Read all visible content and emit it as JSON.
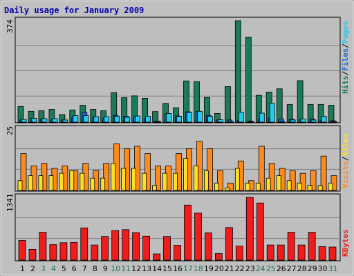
{
  "window": {
    "title": "Daily usage for January 2009"
  },
  "colors": {
    "panel_bg": "#c0c0c0",
    "plot_bg": "#bebebe",
    "grid": "#808080",
    "title": "#0000aa",
    "hits": "#1a7a5a",
    "files": "#1a6ad8",
    "pages": "#22ccee",
    "visits": "#ff8a1a",
    "sites": "#ffe020",
    "kbytes": "#ee1c1c",
    "weekend_label": "#1a7a5a",
    "weekday_label": "#000000"
  },
  "chart_data": [
    {
      "type": "bar",
      "title": "Daily usage for January 2009",
      "ymax_label": "374",
      "ylim": [
        0,
        374
      ],
      "legend_right": [
        {
          "text": "Hits",
          "color": "#1a7a5a"
        },
        {
          "text": "/",
          "color": "#000000"
        },
        {
          "text": "Files",
          "color": "#1a6ad8"
        },
        {
          "text": "/",
          "color": "#000000"
        },
        {
          "text": "Pages",
          "color": "#22ccee"
        }
      ],
      "categories": [
        "1",
        "2",
        "3",
        "4",
        "5",
        "6",
        "7",
        "8",
        "9",
        "10",
        "11",
        "12",
        "13",
        "14",
        "15",
        "16",
        "17",
        "18",
        "19",
        "20",
        "21",
        "22",
        "23",
        "24",
        "25",
        "26",
        "27",
        "28",
        "29",
        "30",
        "31"
      ],
      "series": [
        {
          "name": "Hits",
          "values": [
            58,
            40,
            42,
            47,
            28,
            45,
            62,
            47,
            42,
            109,
            90,
            97,
            88,
            39,
            69,
            53,
            152,
            149,
            91,
            32,
            131,
            374,
            313,
            99,
            111,
            123,
            65,
            153,
            65,
            65,
            62
          ]
        },
        {
          "name": "Files",
          "values": [
            8,
            13,
            11,
            10,
            8,
            16,
            36,
            18,
            14,
            25,
            22,
            21,
            14,
            4,
            30,
            23,
            38,
            40,
            25,
            8,
            8,
            6,
            4,
            11,
            15,
            12,
            11,
            10,
            12,
            7,
            5
          ]
        },
        {
          "name": "Pages",
          "values": [
            10,
            14,
            13,
            13,
            8,
            24,
            24,
            20,
            20,
            22,
            18,
            23,
            22,
            3,
            32,
            21,
            36,
            40,
            21,
            9,
            3,
            37,
            2,
            33,
            70,
            3,
            8,
            12,
            8,
            21,
            2
          ]
        }
      ]
    },
    {
      "type": "bar",
      "ymax_label": "25",
      "ylim": [
        0,
        25
      ],
      "legend_right": [
        {
          "text": "Visits",
          "color": "#ff8a1a"
        },
        {
          "text": "/",
          "color": "#000000"
        },
        {
          "text": "Sites",
          "color": "#ffe020"
        }
      ],
      "categories": [
        "1",
        "2",
        "3",
        "4",
        "5",
        "6",
        "7",
        "8",
        "9",
        "10",
        "11",
        "12",
        "13",
        "14",
        "15",
        "16",
        "17",
        "18",
        "19",
        "20",
        "21",
        "22",
        "23",
        "24",
        "25",
        "26",
        "27",
        "28",
        "29",
        "30",
        "31"
      ],
      "series": [
        {
          "name": "Visits",
          "values": [
            15,
            10,
            11,
            9,
            10,
            8,
            11,
            8,
            11,
            19,
            17,
            18,
            15,
            10,
            10,
            15,
            17,
            20,
            17,
            8,
            3,
            12,
            4,
            18,
            11,
            9,
            8,
            7,
            8,
            14,
            6
          ]
        },
        {
          "name": "Sites",
          "values": [
            4,
            6,
            6,
            6,
            7,
            8,
            7,
            5,
            5,
            11,
            9,
            9,
            7,
            2,
            7,
            7,
            13,
            10,
            8,
            3,
            1,
            9,
            3,
            3,
            5,
            6,
            4,
            3,
            2,
            2,
            3
          ]
        }
      ]
    },
    {
      "type": "bar",
      "ymax_label": "1341",
      "ylim": [
        0,
        1341
      ],
      "legend_right": [
        {
          "text": "KBytes",
          "color": "#ee1c1c"
        }
      ],
      "categories": [
        "1",
        "2",
        "3",
        "4",
        "5",
        "6",
        "7",
        "8",
        "9",
        "10",
        "11",
        "12",
        "13",
        "14",
        "15",
        "16",
        "17",
        "18",
        "19",
        "20",
        "21",
        "22",
        "23",
        "24",
        "25",
        "26",
        "27",
        "28",
        "29",
        "30",
        "31"
      ],
      "series": [
        {
          "name": "KBytes",
          "values": [
            420,
            230,
            596,
            332,
            372,
            378,
            688,
            322,
            506,
            632,
            652,
            588,
            512,
            132,
            506,
            316,
            1174,
            1003,
            584,
            140,
            696,
            300,
            1341,
            1220,
            322,
            322,
            596,
            322,
            596,
            289,
            280
          ]
        }
      ]
    }
  ],
  "x_axis": {
    "labels": [
      "1",
      "2",
      "3",
      "4",
      "5",
      "6",
      "7",
      "8",
      "9",
      "10",
      "11",
      "12",
      "13",
      "14",
      "15",
      "16",
      "17",
      "18",
      "19",
      "20",
      "21",
      "22",
      "23",
      "24",
      "25",
      "26",
      "27",
      "28",
      "29",
      "30",
      "31"
    ],
    "weekend": [
      3,
      4,
      10,
      11,
      17,
      18,
      24,
      25,
      31
    ]
  }
}
